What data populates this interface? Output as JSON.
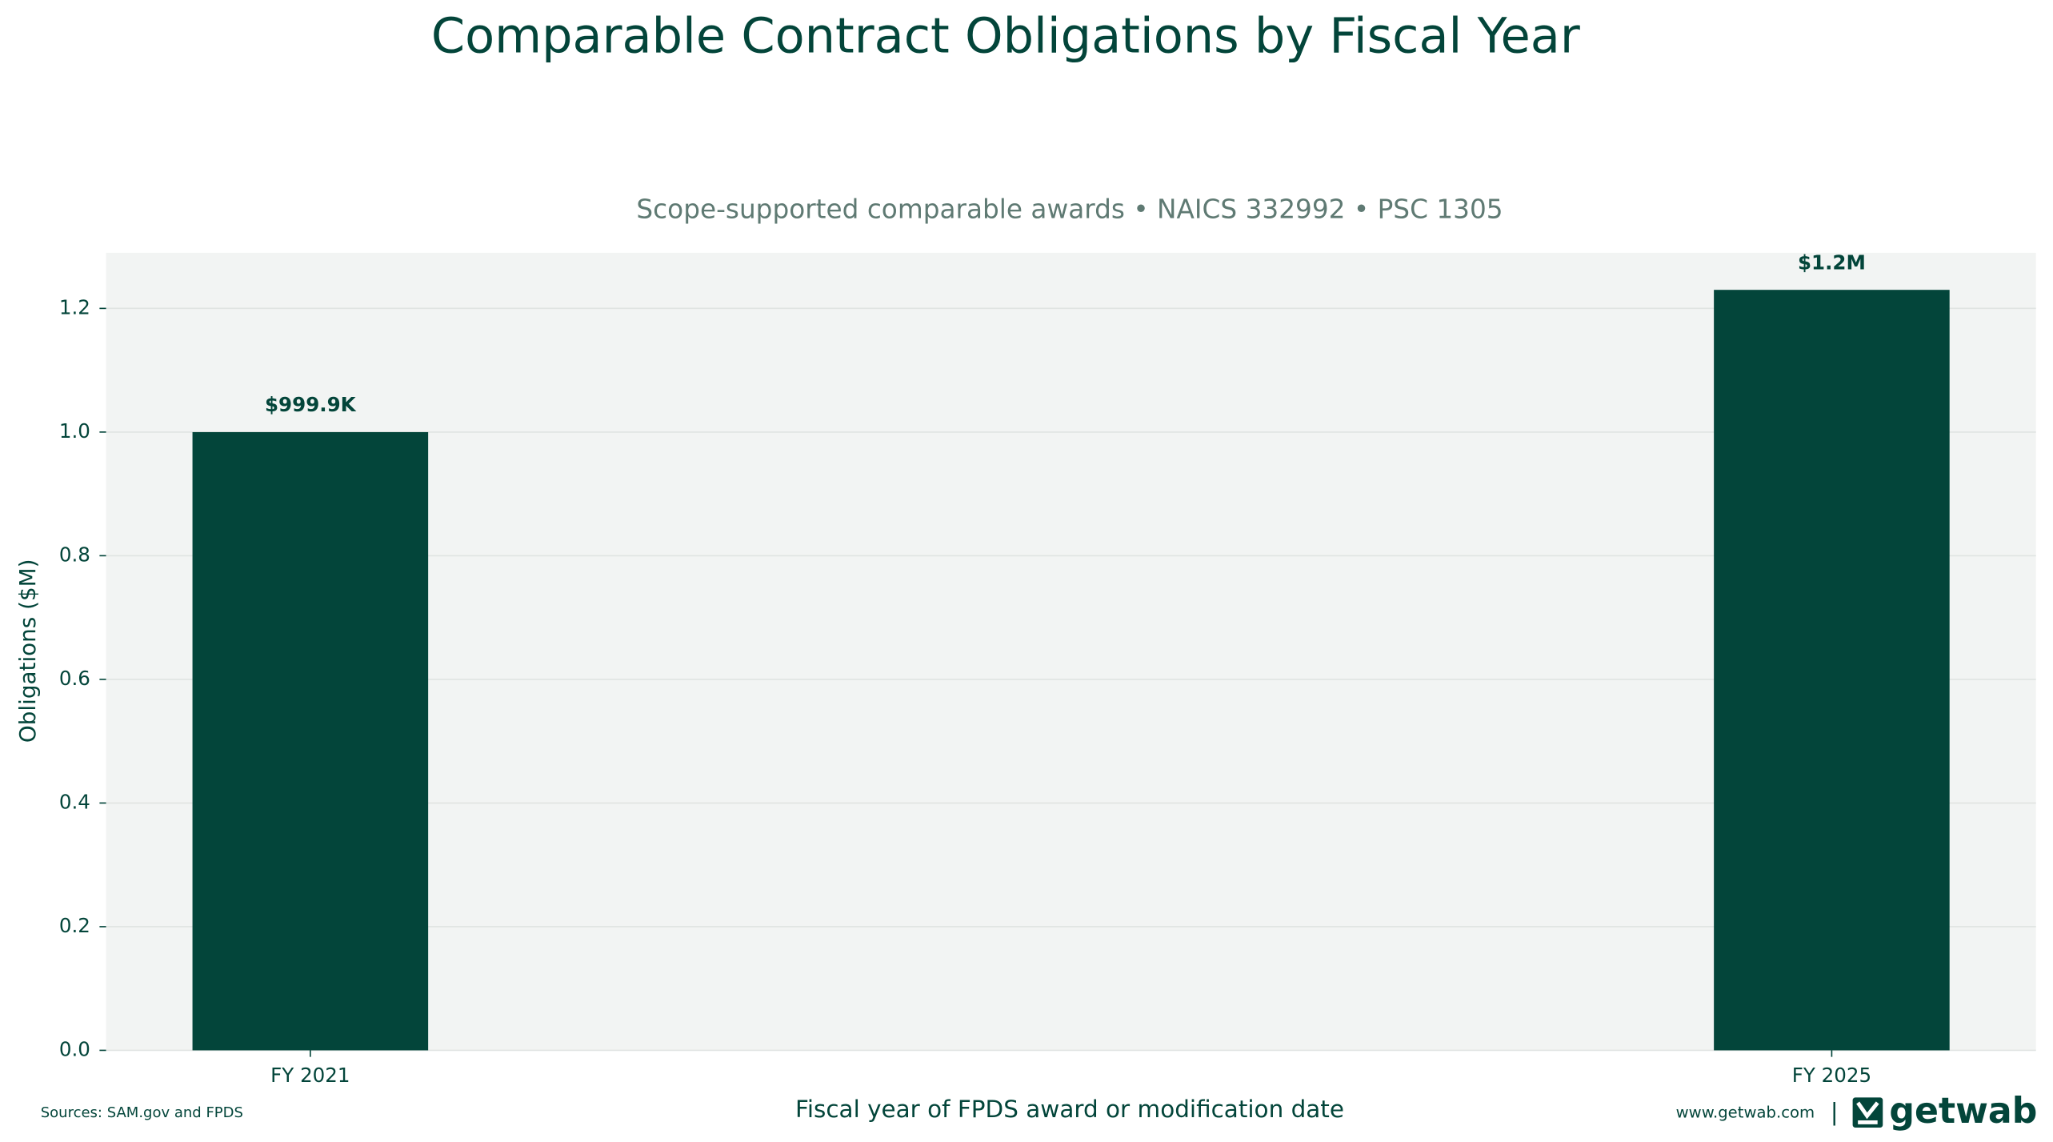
{
  "chart_data": {
    "type": "bar",
    "title": "Comparable Contract Obligations by Fiscal Year",
    "subtitle": "Scope-supported comparable awards • NAICS 332992 • PSC 1305",
    "y_label": "Obligations ($M)",
    "x_label": "Fiscal year of FPDS award or modification date",
    "categories": [
      "FY 2021",
      "FY 2025"
    ],
    "values": [
      0.9999,
      1.23
    ],
    "value_labels": [
      "$999.9K",
      "$1.2M"
    ],
    "color": "#03453a",
    "ylim": [
      0,
      1.29
    ],
    "yticks": [
      {
        "value": 0,
        "label": "0.0"
      },
      0.2,
      0.4,
      0.6,
      0.8,
      {
        "value": 1,
        "label": "1.0"
      },
      1.2
    ],
    "grid": true,
    "source_note": "Sources: SAM.gov and FPDS",
    "website": "www.getwab.com",
    "separator": "|",
    "brand": "getwab"
  }
}
